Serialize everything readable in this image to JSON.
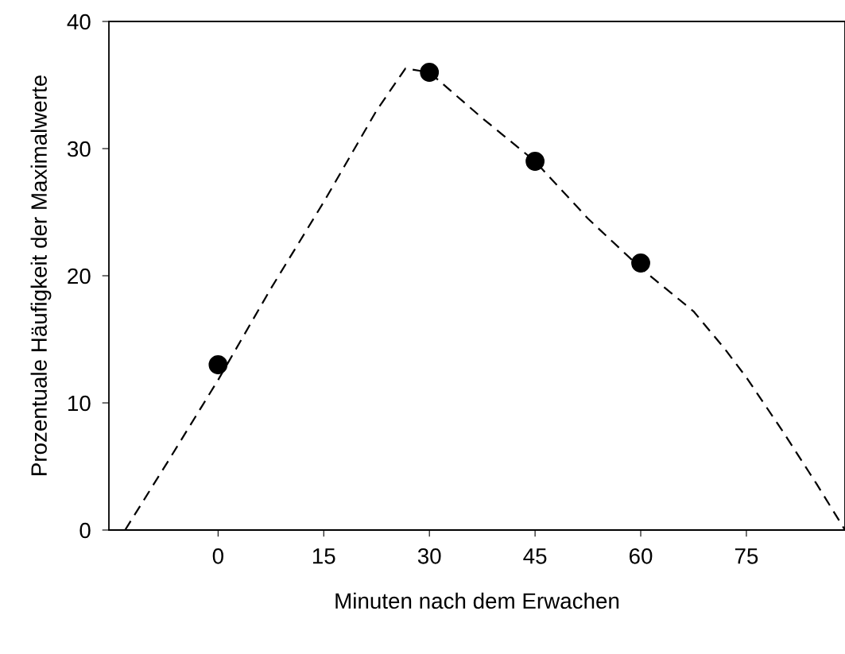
{
  "chart_data": {
    "type": "scatter",
    "xlabel": "Minuten nach dem Erwachen",
    "ylabel": "Prozentuale Häufigkeit der Maximalwerte",
    "xlim": [
      -15.5,
      89
    ],
    "ylim": [
      0,
      40
    ],
    "xticks": [
      0,
      15,
      30,
      45,
      60,
      75
    ],
    "yticks": [
      0,
      10,
      20,
      30,
      40
    ],
    "grid": false,
    "series": [
      {
        "color": "#000000",
        "marker": "circle",
        "x": [
          0,
          30,
          45,
          60
        ],
        "values": [
          13,
          36,
          29,
          21
        ]
      },
      {
        "type": "line",
        "color": "#000000",
        "line_style": "dashed",
        "marker": "none",
        "x": [
          -13.2,
          -7,
          0,
          7.5,
          15,
          22.5,
          26.6,
          30,
          37.5,
          45,
          52.5,
          60,
          67.5,
          72,
          75,
          80,
          85,
          89
        ],
        "values": [
          0,
          5.5,
          11.8,
          19,
          25.8,
          33,
          36.3,
          36,
          32.4,
          29,
          24.5,
          20.6,
          17.2,
          14.2,
          12,
          7.9,
          3.6,
          0
        ]
      }
    ]
  }
}
